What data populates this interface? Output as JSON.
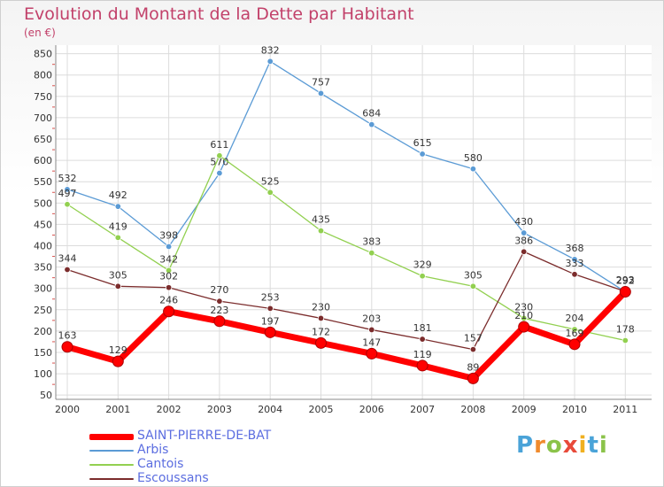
{
  "chart_data": {
    "type": "line",
    "title": "Evolution du Montant de la Dette par Habitant",
    "subtitle": "(en €)",
    "x": [
      "2000",
      "2001",
      "2002",
      "2003",
      "2004",
      "2005",
      "2006",
      "2007",
      "2008",
      "2009",
      "2010",
      "2011"
    ],
    "ylim": [
      40,
      870
    ],
    "yticks": [
      50,
      100,
      150,
      200,
      250,
      300,
      350,
      400,
      450,
      500,
      550,
      600,
      650,
      700,
      750,
      800,
      850
    ],
    "grid": true,
    "legend_position": "bottom-left",
    "series": [
      {
        "name": "SAINT-PIERRE-DE-BAT",
        "color": "#ff0000",
        "values": [
          163,
          129,
          246,
          223,
          197,
          172,
          147,
          119,
          89,
          210,
          169,
          292
        ]
      },
      {
        "name": "Arbis",
        "color": "#5b9bd5",
        "values": [
          532,
          492,
          398,
          570,
          832,
          757,
          684,
          615,
          580,
          430,
          368,
          292
        ]
      },
      {
        "name": "Cantois",
        "color": "#92d050",
        "values": [
          497,
          419,
          342,
          611,
          525,
          435,
          383,
          329,
          305,
          230,
          204,
          178
        ]
      },
      {
        "name": "Escoussans",
        "color": "#7b2c2c",
        "values": [
          344,
          305,
          302,
          270,
          253,
          230,
          203,
          181,
          157,
          386,
          333,
          293
        ]
      }
    ]
  },
  "logo": {
    "p": "P",
    "r": "r",
    "o": "o",
    "x": "x",
    "i": "i",
    "t": "t",
    "i2": "i"
  }
}
